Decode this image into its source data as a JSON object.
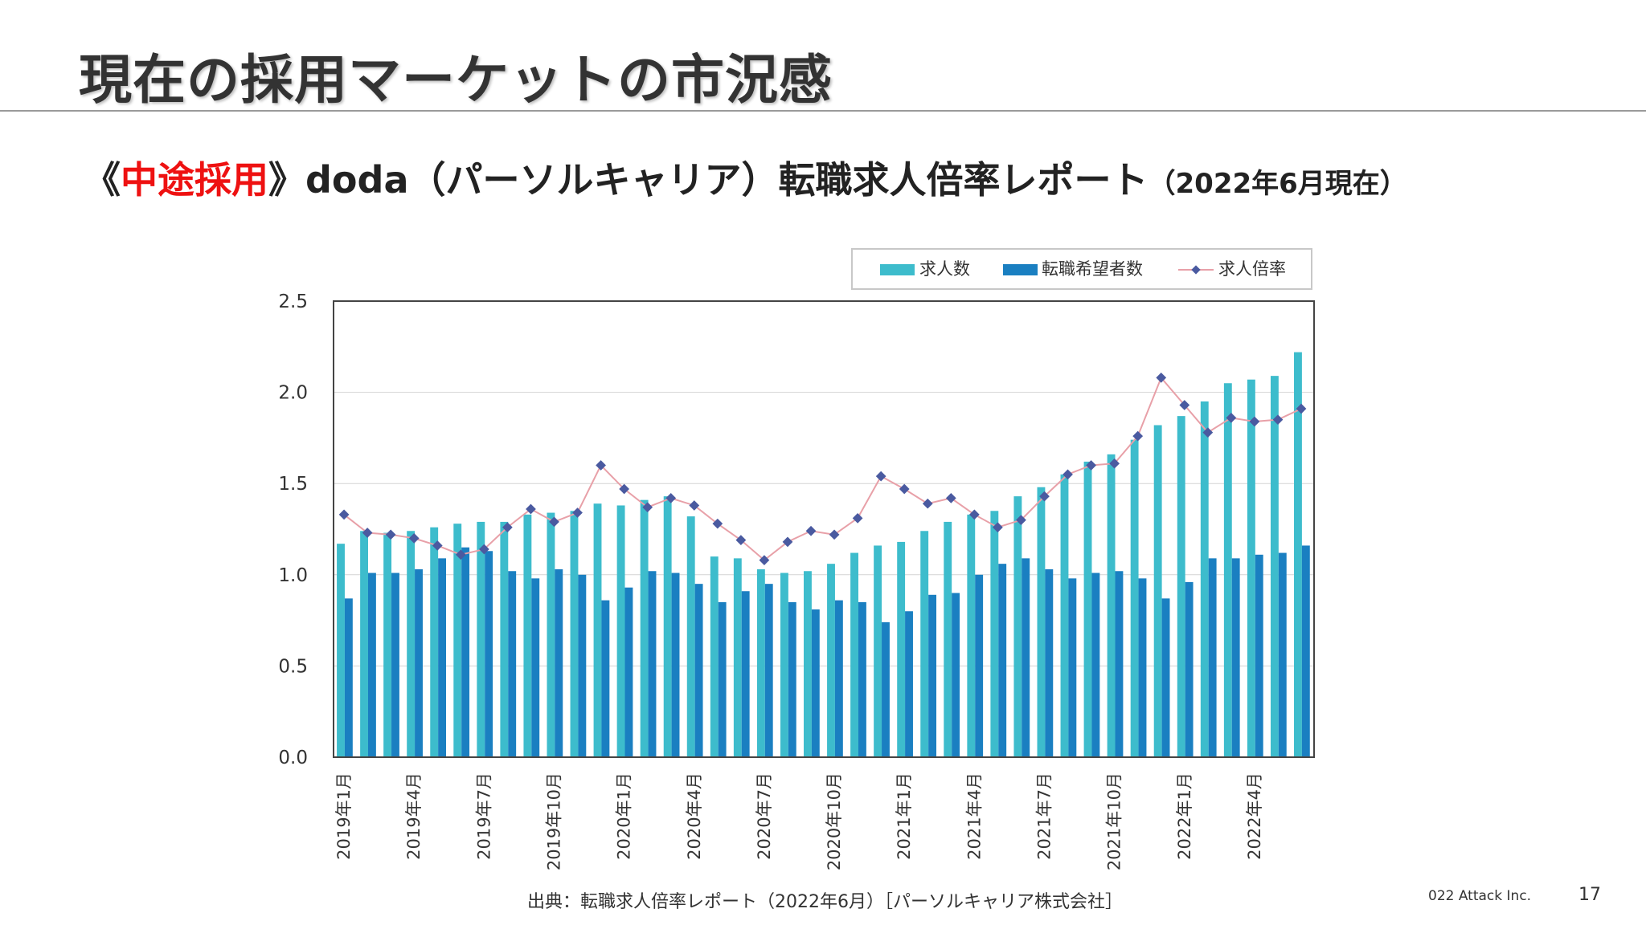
{
  "slide": {
    "title": "現在の採用マーケットの市況感",
    "subtitle_open": "《",
    "subtitle_accent": "中途採用",
    "subtitle_close": "》",
    "subtitle_main": "doda（パーソルキャリア）転職求人倍率レポート",
    "subtitle_date": "（2022年6月現在）",
    "source": "出典：転職求人倍率レポート（2022年6月）［パーソルキャリア株式会社］",
    "company": "022 Attack Inc.",
    "page_number": "17"
  },
  "colors": {
    "jobs": "#3dbccc",
    "seekers": "#1a7fc1",
    "ratio_line": "#e8a0a8",
    "ratio_marker": "#4a5aa0",
    "accent": "#ee1111"
  },
  "chart_data": {
    "type": "bar",
    "ylim": [
      0,
      2.5
    ],
    "yticks": [
      "0.0",
      "0.5",
      "1.0",
      "1.5",
      "2.0",
      "2.5"
    ],
    "grid": true,
    "legend_position": "top-right",
    "categories": [
      "2019年1月",
      "2019年2月",
      "2019年3月",
      "2019年4月",
      "2019年5月",
      "2019年6月",
      "2019年7月",
      "2019年8月",
      "2019年9月",
      "2019年10月",
      "2019年11月",
      "2019年12月",
      "2020年1月",
      "2020年2月",
      "2020年3月",
      "2020年4月",
      "2020年5月",
      "2020年6月",
      "2020年7月",
      "2020年8月",
      "2020年9月",
      "2020年10月",
      "2020年11月",
      "2020年12月",
      "2021年1月",
      "2021年2月",
      "2021年3月",
      "2021年4月",
      "2021年5月",
      "2021年6月",
      "2021年7月",
      "2021年8月",
      "2021年9月",
      "2021年10月",
      "2021年11月",
      "2021年12月",
      "2022年1月",
      "2022年2月",
      "2022年3月",
      "2022年4月",
      "2022年5月",
      "2022年6月"
    ],
    "labeled_ticks": [
      "2019年1月",
      "2019年4月",
      "2019年7月",
      "2019年10月",
      "2020年1月",
      "2020年4月",
      "2020年7月",
      "2020年10月",
      "2021年1月",
      "2021年4月",
      "2021年7月",
      "2021年10月",
      "2022年1月",
      "2022年4月"
    ],
    "series": [
      {
        "name": "求人数",
        "kind": "bar",
        "values": [
          1.17,
          1.24,
          1.23,
          1.24,
          1.26,
          1.28,
          1.29,
          1.29,
          1.33,
          1.34,
          1.35,
          1.39,
          1.38,
          1.41,
          1.43,
          1.32,
          1.1,
          1.09,
          1.03,
          1.01,
          1.02,
          1.06,
          1.12,
          1.16,
          1.18,
          1.24,
          1.29,
          1.33,
          1.35,
          1.43,
          1.48,
          1.55,
          1.62,
          1.66,
          1.74,
          1.82,
          1.87,
          1.95,
          2.05,
          2.07,
          2.09,
          2.22
        ]
      },
      {
        "name": "転職希望者数",
        "kind": "bar",
        "values": [
          0.87,
          1.01,
          1.01,
          1.03,
          1.09,
          1.15,
          1.13,
          1.02,
          0.98,
          1.03,
          1.0,
          0.86,
          0.93,
          1.02,
          1.01,
          0.95,
          0.85,
          0.91,
          0.95,
          0.85,
          0.81,
          0.86,
          0.85,
          0.74,
          0.8,
          0.89,
          0.9,
          1.0,
          1.06,
          1.09,
          1.03,
          0.98,
          1.01,
          1.02,
          0.98,
          0.87,
          0.96,
          1.09,
          1.09,
          1.11,
          1.12,
          1.16
        ]
      },
      {
        "name": "求人倍率",
        "kind": "line",
        "values": [
          1.33,
          1.23,
          1.22,
          1.2,
          1.16,
          1.11,
          1.14,
          1.26,
          1.36,
          1.29,
          1.34,
          1.6,
          1.47,
          1.37,
          1.42,
          1.38,
          1.28,
          1.19,
          1.08,
          1.18,
          1.24,
          1.22,
          1.31,
          1.54,
          1.47,
          1.39,
          1.42,
          1.33,
          1.26,
          1.3,
          1.43,
          1.55,
          1.6,
          1.61,
          1.76,
          2.08,
          1.93,
          1.78,
          1.86,
          1.84,
          1.85,
          1.91
        ]
      }
    ]
  }
}
